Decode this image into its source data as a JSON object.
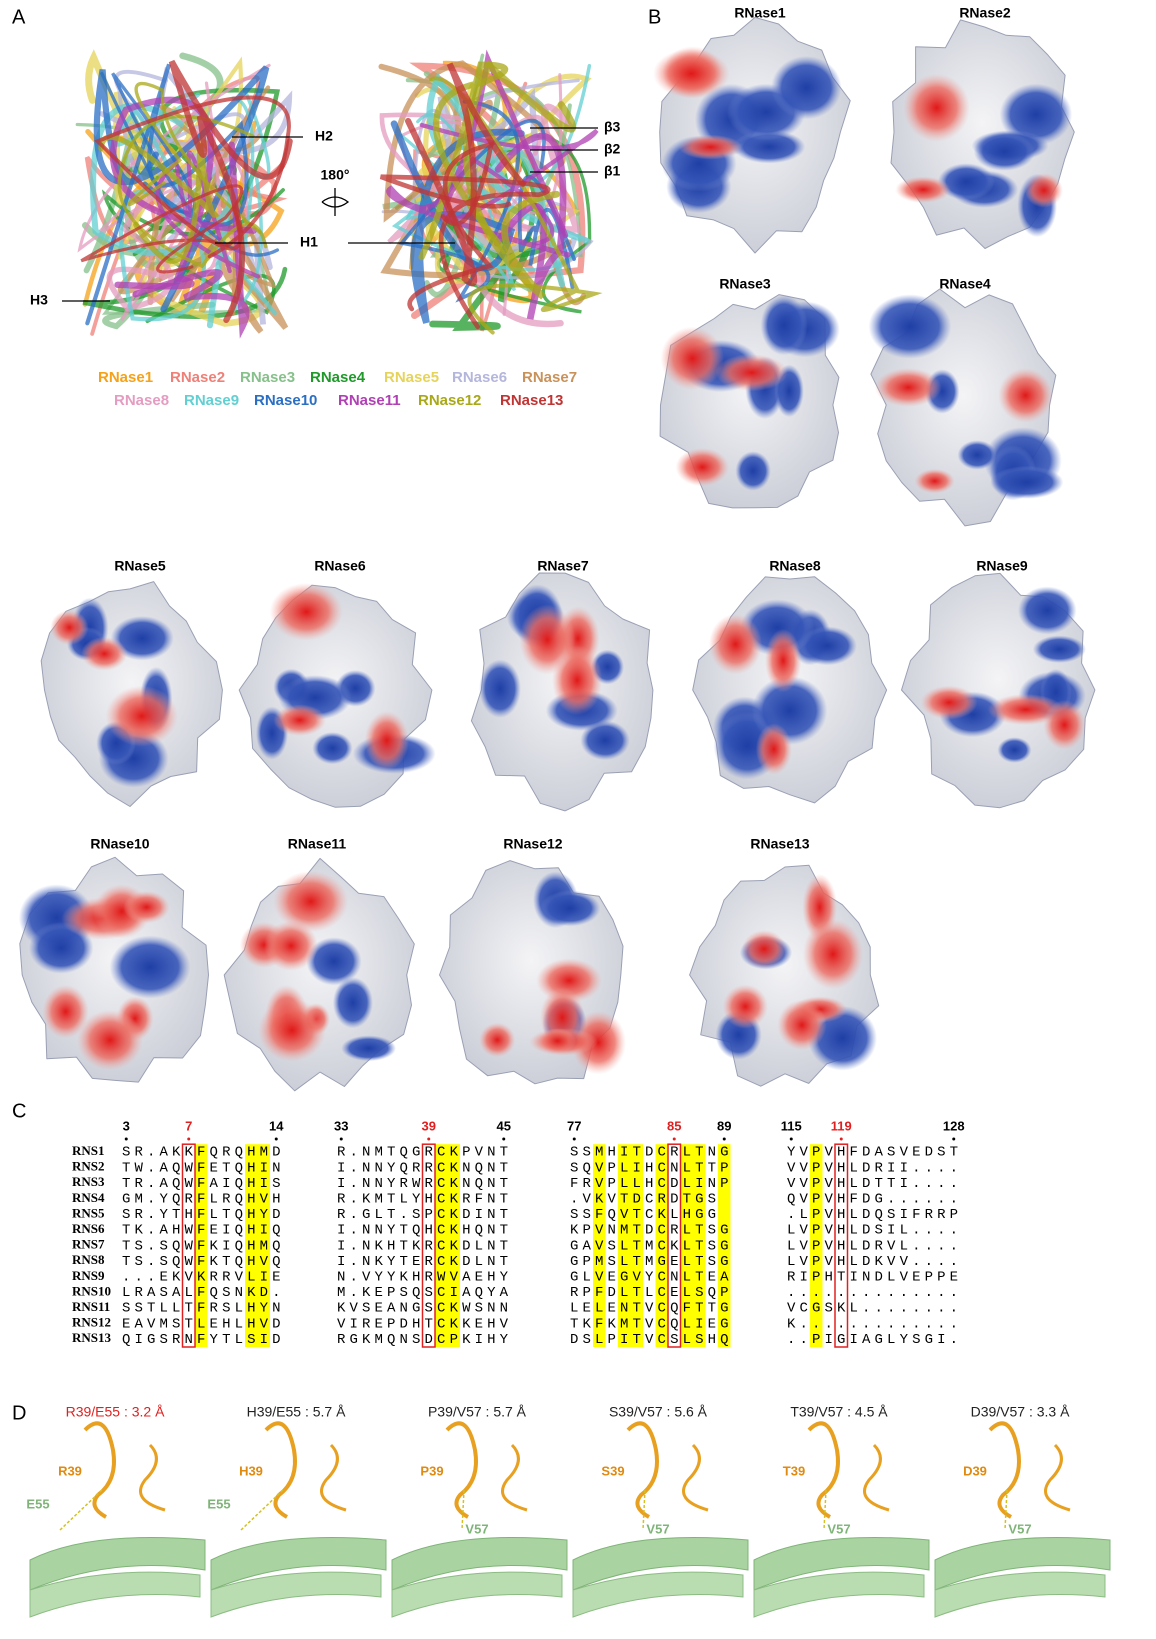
{
  "panel_labels": [
    "A",
    "B",
    "C",
    "D"
  ],
  "panel_a": {
    "helix_labels": [
      "H2",
      "H1",
      "H3"
    ],
    "strand_labels": [
      "β3",
      "β2",
      "β1"
    ],
    "rotation": "180°",
    "legend": [
      {
        "name": "RNase1",
        "color": "#f5a219"
      },
      {
        "name": "RNase2",
        "color": "#ef8078"
      },
      {
        "name": "RNase3",
        "color": "#86c08a"
      },
      {
        "name": "RNase4",
        "color": "#1f9a2a"
      },
      {
        "name": "RNase5",
        "color": "#e6d35a"
      },
      {
        "name": "RNase6",
        "color": "#b4b6dc"
      },
      {
        "name": "RNase7",
        "color": "#c8925a"
      },
      {
        "name": "RNase8",
        "color": "#e49cc0"
      },
      {
        "name": "RNase9",
        "color": "#62cfd2"
      },
      {
        "name": "RNase10",
        "color": "#2a6fc4"
      },
      {
        "name": "RNase11",
        "color": "#b040b4"
      },
      {
        "name": "RNase12",
        "color": "#a8a818"
      },
      {
        "name": "RNase13",
        "color": "#c03434"
      }
    ]
  },
  "surfaces": [
    "RNase1",
    "RNase2",
    "RNase3",
    "RNase4",
    "RNase5",
    "RNase6",
    "RNase7",
    "RNase8",
    "RNase9",
    "RNase10",
    "RNase11",
    "RNase12",
    "RNase13"
  ],
  "alignment": {
    "numbers": [
      {
        "text": "3",
        "color": "#000000"
      },
      {
        "text": "7",
        "color": "#e02020"
      },
      {
        "text": "14",
        "color": "#000000"
      },
      {
        "text": "33",
        "color": "#000000"
      },
      {
        "text": "39",
        "color": "#e02020"
      },
      {
        "text": "45",
        "color": "#000000"
      },
      {
        "text": "77",
        "color": "#000000"
      },
      {
        "text": "85",
        "color": "#e02020"
      },
      {
        "text": "89",
        "color": "#000000"
      },
      {
        "text": "115",
        "color": "#000000"
      },
      {
        "text": "119",
        "color": "#e02020"
      },
      {
        "text": "128",
        "color": "#000000"
      }
    ],
    "rows": [
      {
        "name": "RNS1",
        "blocks": [
          "SR.AKKFQRQHMD",
          "R.NMTQGRCKPVNT",
          "SSMHITDCRLTNG",
          "YVPVHFDASVEDST"
        ]
      },
      {
        "name": "RNS2",
        "blocks": [
          "TW.AQWFETQHIN",
          "I.NNYQRRCKNQNT",
          "SQVPLIHCNLTTP",
          "VVPVHLDRII...."
        ]
      },
      {
        "name": "RNS3",
        "blocks": [
          "TR.AQWFAIQHIS",
          "I.NNYRWRCKNQNT",
          "FRVPLLHCDLINP",
          "VVPVHLDTTI...."
        ]
      },
      {
        "name": "RNS4",
        "blocks": [
          "GM.YQRFLRQHVH",
          "R.KMTLYHCKRFNT",
          ".VKVTDCRDTGS",
          "QVPVHFDG......"
        ]
      },
      {
        "name": "RNS5",
        "blocks": [
          "SR.YTHFLTQHYD",
          "R.GLT.SPCKDINT",
          "SSFQVTCKLHGG",
          ".LPVHLDQSIFRRP"
        ]
      },
      {
        "name": "RNS6",
        "blocks": [
          "TK.AHWFEIQHIQ",
          "I.NNYTQHCKHQNT",
          "KPVNMTDCRLTSG",
          "LVPVHLDSIL...."
        ]
      },
      {
        "name": "RNS7",
        "blocks": [
          "TS.SQWFKIQHMQ",
          "I.NKHTKRCKDLNT",
          "GAVSLTMCKLTSG",
          "LVPVHLDRVL...."
        ]
      },
      {
        "name": "RNS8",
        "blocks": [
          "TS.SQWFKTQHVQ",
          "I.NKYTERCKDLNT",
          "GPMSLTMGELTSG",
          "LVPVHLDKVV...."
        ]
      },
      {
        "name": "RNS9",
        "blocks": [
          "...EKVKRRVLIE",
          "N.VYYKHRWVAEHY",
          "GLVEGVYCNLTEA",
          "RIPHTINDLVEPPE"
        ]
      },
      {
        "name": "RNS10",
        "blocks": [
          "LRASALFQSNKD.",
          "M.KEPSQSCIAQYA",
          "RPFDLTLCELSQP",
          ".............."
        ]
      },
      {
        "name": "RNS11",
        "blocks": [
          "SSTLLTFRSLHYN",
          "KVSEANGSCKWSNN",
          "LELENTVCQFTTG",
          "VCGSKL........"
        ]
      },
      {
        "name": "RNS12",
        "blocks": [
          "EAVMSTLEHLHVD",
          "VIREPDHTCKKEHV",
          "TKFKMTVCQLIEG",
          "K............."
        ]
      },
      {
        "name": "RNS13",
        "blocks": [
          "QIGSRNFYTLSID",
          "RGKMQNSDCPKIHY",
          "DSLPITVCSLSHQ",
          "..PIGIAGLYSGI."
        ]
      }
    ]
  },
  "panel_d": [
    {
      "title": "R39/E55 : 3.2 Å",
      "color": "#e02020",
      "residue": "R39",
      "partner": "E55"
    },
    {
      "title": "H39/E55 : 5.7 Å",
      "color": "#222222",
      "residue": "H39",
      "partner": "E55"
    },
    {
      "title": "P39/V57 : 5.7 Å",
      "color": "#222222",
      "residue": "P39",
      "partner": "V57"
    },
    {
      "title": "S39/V57 : 5.6 Å",
      "color": "#222222",
      "residue": "S39",
      "partner": "V57"
    },
    {
      "title": "T39/V57 : 4.5 Å",
      "color": "#222222",
      "residue": "T39",
      "partner": "V57"
    },
    {
      "title": "D39/V57 : 3.3 Å",
      "color": "#222222",
      "residue": "D39",
      "partner": "V57"
    }
  ]
}
